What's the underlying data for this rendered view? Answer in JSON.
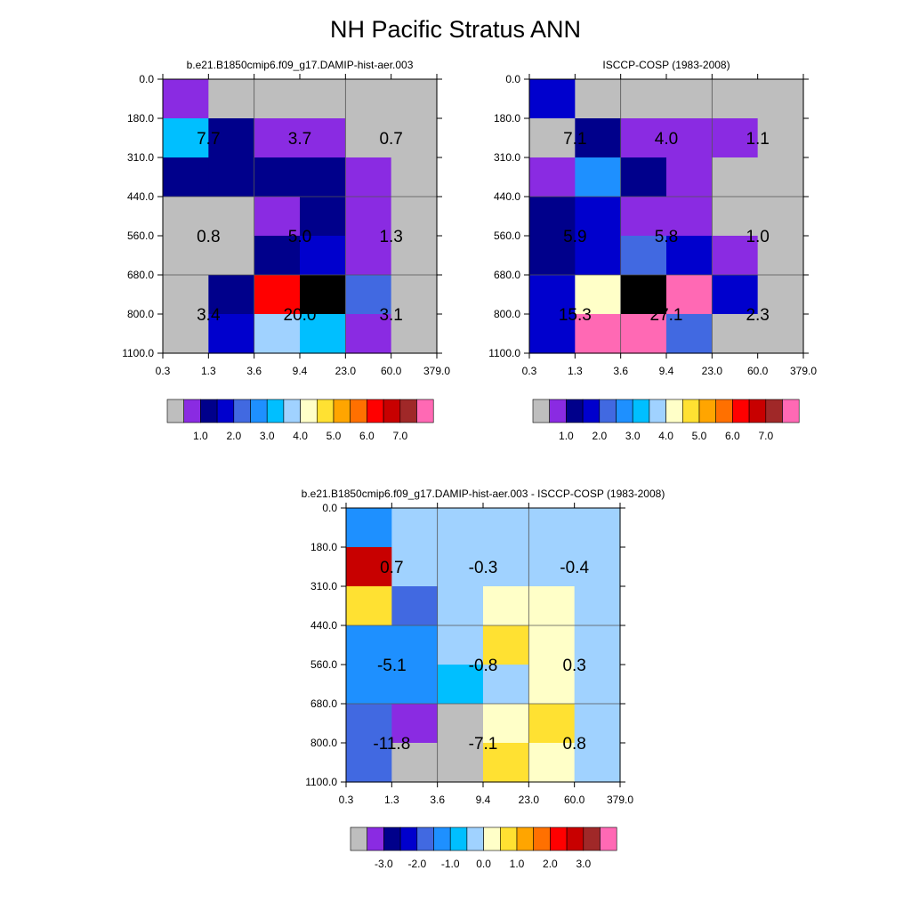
{
  "title": "NH Pacific Stratus ANN",
  "chart_data": [
    {
      "type": "heatmap",
      "title": "b.e21.B1850cmip6.f09_g17.DAMIP-hist-aer.003",
      "x_ticks": [
        "0.3",
        "1.3",
        "3.6",
        "9.4",
        "23.0",
        "60.0",
        "379.0"
      ],
      "y_ticks": [
        "0.0",
        "180.0",
        "310.0",
        "440.0",
        "560.0",
        "680.0",
        "800.0",
        "1100.0"
      ],
      "cells": [
        [
          1,
          0,
          0,
          0,
          0,
          0
        ],
        [
          6,
          2,
          1,
          1,
          0,
          0
        ],
        [
          2,
          2,
          2,
          2,
          1,
          0
        ],
        [
          0,
          0,
          1,
          2,
          1,
          0
        ],
        [
          0,
          0,
          2,
          3,
          1,
          0
        ],
        [
          0,
          2,
          12,
          16,
          4,
          0
        ],
        [
          0,
          3,
          7,
          6,
          1,
          0
        ]
      ],
      "annotations": [
        {
          "col_group": 0,
          "row_group": 0,
          "text": "7.7"
        },
        {
          "col_group": 1,
          "row_group": 0,
          "text": "3.7"
        },
        {
          "col_group": 2,
          "row_group": 0,
          "text": "0.7"
        },
        {
          "col_group": 0,
          "row_group": 1,
          "text": "0.8"
        },
        {
          "col_group": 1,
          "row_group": 1,
          "text": "5.0"
        },
        {
          "col_group": 2,
          "row_group": 1,
          "text": "1.3"
        },
        {
          "col_group": 0,
          "row_group": 2,
          "text": "3.4"
        },
        {
          "col_group": 1,
          "row_group": 2,
          "text": "20.0"
        },
        {
          "col_group": 2,
          "row_group": 2,
          "text": "3.1"
        }
      ],
      "colorbar_labels": [
        "1.0",
        "2.0",
        "3.0",
        "4.0",
        "5.0",
        "6.0",
        "7.0"
      ]
    },
    {
      "type": "heatmap",
      "title": "ISCCP-COSP (1983-2008)",
      "x_ticks": [
        "0.3",
        "1.3",
        "3.6",
        "9.4",
        "23.0",
        "60.0",
        "379.0"
      ],
      "y_ticks": [
        "0.0",
        "180.0",
        "310.0",
        "440.0",
        "560.0",
        "680.0",
        "800.0",
        "1100.0"
      ],
      "cells": [
        [
          3,
          0,
          0,
          0,
          0,
          0
        ],
        [
          0,
          2,
          1,
          1,
          1,
          0
        ],
        [
          1,
          5,
          2,
          1,
          0,
          0
        ],
        [
          2,
          3,
          1,
          1,
          0,
          0
        ],
        [
          2,
          3,
          4,
          3,
          1,
          0
        ],
        [
          3,
          8,
          16,
          15,
          3,
          0
        ],
        [
          3,
          15,
          15,
          4,
          0,
          0
        ]
      ],
      "annotations": [
        {
          "col_group": 0,
          "row_group": 0,
          "text": "7.1"
        },
        {
          "col_group": 1,
          "row_group": 0,
          "text": "4.0"
        },
        {
          "col_group": 2,
          "row_group": 0,
          "text": "1.1"
        },
        {
          "col_group": 0,
          "row_group": 1,
          "text": "5.9"
        },
        {
          "col_group": 1,
          "row_group": 1,
          "text": "5.8"
        },
        {
          "col_group": 2,
          "row_group": 1,
          "text": "1.0"
        },
        {
          "col_group": 0,
          "row_group": 2,
          "text": "15.3"
        },
        {
          "col_group": 1,
          "row_group": 2,
          "text": "27.1"
        },
        {
          "col_group": 2,
          "row_group": 2,
          "text": "2.3"
        }
      ],
      "colorbar_labels": [
        "1.0",
        "2.0",
        "3.0",
        "4.0",
        "5.0",
        "6.0",
        "7.0"
      ]
    },
    {
      "type": "heatmap",
      "title": "b.e21.B1850cmip6.f09_g17.DAMIP-hist-aer.003 - ISCCP-COSP (1983-2008)",
      "x_ticks": [
        "0.3",
        "1.3",
        "3.6",
        "9.4",
        "23.0",
        "60.0",
        "379.0"
      ],
      "y_ticks": [
        "0.0",
        "180.0",
        "310.0",
        "440.0",
        "560.0",
        "680.0",
        "800.0",
        "1100.0"
      ],
      "cells": [
        [
          5,
          7,
          7,
          7,
          7,
          7
        ],
        [
          13,
          7,
          7,
          7,
          7,
          7
        ],
        [
          9,
          4,
          7,
          8,
          8,
          7
        ],
        [
          5,
          5,
          7,
          9,
          8,
          7
        ],
        [
          5,
          5,
          6,
          7,
          8,
          7
        ],
        [
          4,
          1,
          0,
          8,
          9,
          7
        ],
        [
          4,
          0,
          0,
          9,
          8,
          7
        ]
      ],
      "annotations": [
        {
          "col_group": 0,
          "row_group": 0,
          "text": "0.7"
        },
        {
          "col_group": 1,
          "row_group": 0,
          "text": "-0.3"
        },
        {
          "col_group": 2,
          "row_group": 0,
          "text": "-0.4"
        },
        {
          "col_group": 0,
          "row_group": 1,
          "text": "-5.1"
        },
        {
          "col_group": 1,
          "row_group": 1,
          "text": "-0.8"
        },
        {
          "col_group": 2,
          "row_group": 1,
          "text": "0.3"
        },
        {
          "col_group": 0,
          "row_group": 2,
          "text": "-11.8"
        },
        {
          "col_group": 1,
          "row_group": 2,
          "text": "-7.1"
        },
        {
          "col_group": 2,
          "row_group": 2,
          "text": "0.8"
        }
      ],
      "colorbar_labels": [
        "-3.0",
        "-2.0",
        "-1.0",
        "0.0",
        "1.0",
        "2.0",
        "3.0"
      ]
    }
  ],
  "colors": {
    "palette": [
      "#bebebe",
      "#8a2be2",
      "#00008b",
      "#0000cd",
      "#4169e1",
      "#1e90ff",
      "#00bfff",
      "#a0d2ff",
      "#ffffc8",
      "#ffe132",
      "#ffa500",
      "#ff7000",
      "#ff0000",
      "#c80000",
      "#a02828",
      "#ff69b4"
    ],
    "diff_palette": [
      "#bebebe",
      "#8a2be2",
      "#00008b",
      "#0000cd",
      "#4169e1",
      "#1e90ff",
      "#00bfff",
      "#a0d2ff",
      "#ffffc8",
      "#ffe132",
      "#ffa500",
      "#ff7000",
      "#ff0000",
      "#c80000",
      "#a02828",
      "#ff69b4"
    ]
  }
}
